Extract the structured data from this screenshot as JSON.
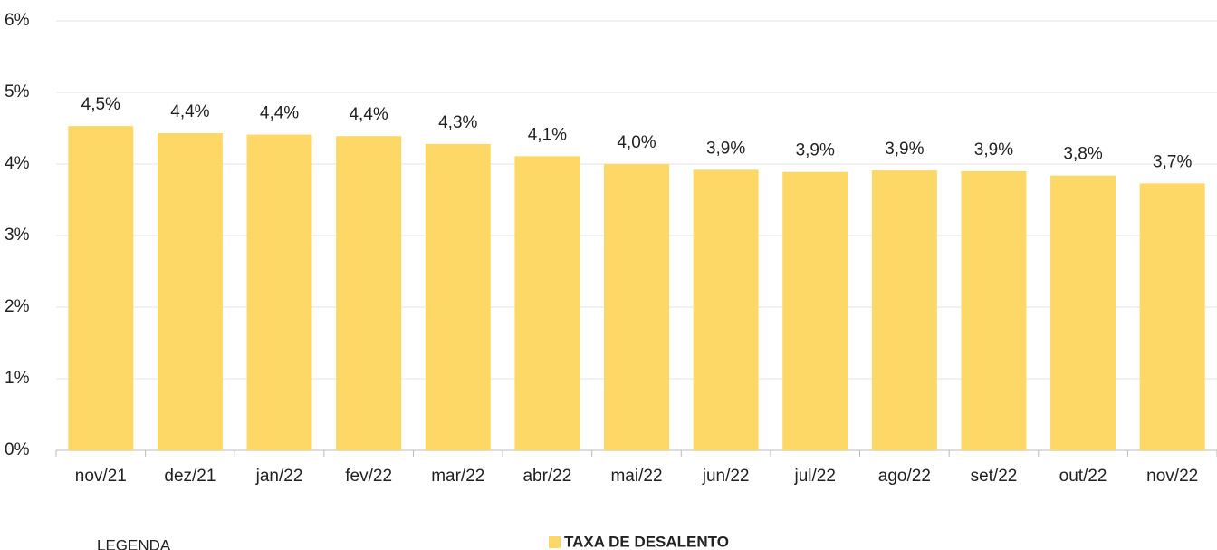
{
  "chart_data": {
    "type": "bar",
    "categories": [
      "nov/21",
      "dez/21",
      "jan/22",
      "fev/22",
      "mar/22",
      "abr/22",
      "mai/22",
      "jun/22",
      "jul/22",
      "ago/22",
      "set/22",
      "out/22",
      "nov/22"
    ],
    "series": [
      {
        "name": "TAXA DE DESALENTO",
        "color": "#fdd867",
        "values": [
          4.53,
          4.43,
          4.41,
          4.39,
          4.28,
          4.11,
          4.0,
          3.92,
          3.89,
          3.91,
          3.9,
          3.84,
          3.73
        ],
        "value_labels": [
          "4,5%",
          "4,4%",
          "4,4%",
          "4,4%",
          "4,3%",
          "4,1%",
          "4,0%",
          "3,9%",
          "3,9%",
          "3,9%",
          "3,9%",
          "3,8%",
          "3,7%"
        ]
      }
    ],
    "ylim": [
      0,
      6
    ],
    "yticks": [
      {
        "value": 0,
        "label": "0%"
      },
      {
        "value": 1,
        "label": "1%"
      },
      {
        "value": 2,
        "label": "2%"
      },
      {
        "value": 3,
        "label": "3%"
      },
      {
        "value": 4,
        "label": "4%"
      },
      {
        "value": 5,
        "label": "5%"
      },
      {
        "value": 6,
        "label": "6%"
      }
    ],
    "grid": true,
    "legend": "bottom",
    "legend_title": "LEGENDA"
  }
}
